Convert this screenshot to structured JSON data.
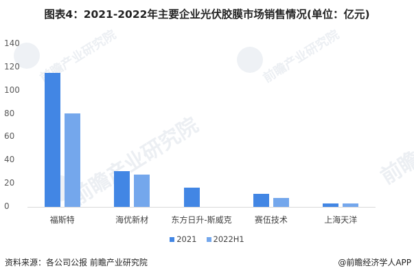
{
  "title": "图表4：2021-2022年主要企业光伏胶膜市场销售情况(单位：亿元)",
  "watermark_text": "前瞻产业研究院",
  "chart_data": {
    "type": "bar",
    "title": "图表4：2021-2022年主要企业光伏胶膜市场销售情况(单位：亿元)",
    "xlabel": "",
    "ylabel": "亿元",
    "ylim": [
      0,
      140
    ],
    "yticks": [
      0,
      20,
      40,
      60,
      80,
      100,
      120,
      140
    ],
    "grid": false,
    "legend_position": "bottom",
    "categories": [
      "福斯特",
      "海优新材",
      "东方日升-斯威克",
      "赛伍技术",
      "上海天洋"
    ],
    "series": [
      {
        "name": "2021",
        "color": "#4286e4",
        "values": [
          115.2,
          30.7,
          16.5,
          11.2,
          3.1
        ]
      },
      {
        "name": "2022H1",
        "color": "#74a7ec",
        "values": [
          80.3,
          27.8,
          null,
          7.7,
          3.0
        ]
      }
    ]
  },
  "yticks": [
    "140",
    "120",
    "100",
    "80",
    "60",
    "40",
    "20",
    "0"
  ],
  "legend": {
    "items": [
      {
        "label": "2021",
        "color": "#4286e4"
      },
      {
        "label": "2022H1",
        "color": "#74a7ec"
      }
    ]
  },
  "footer": {
    "source": "资料来源：各公司公报 前瞻产业研究院",
    "credit": "@前瞻经济学人APP"
  }
}
